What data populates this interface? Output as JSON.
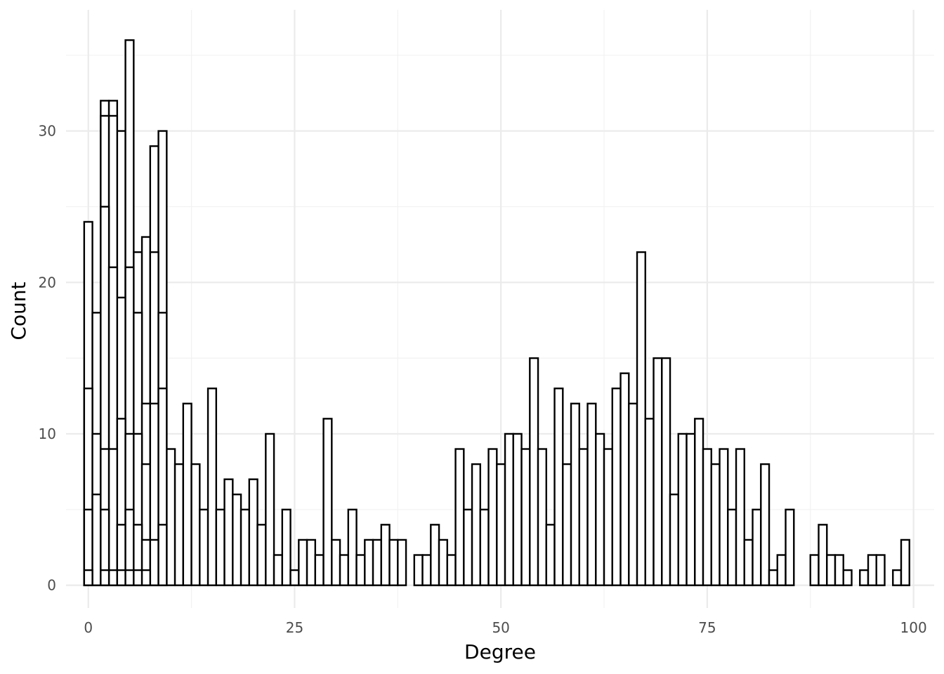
{
  "chart_data": {
    "type": "bar",
    "title": "",
    "xlabel": "Degree",
    "ylabel": "Count",
    "xlim": [
      -2.7,
      102.5
    ],
    "ylim": [
      -1.5,
      38
    ],
    "x_ticks": [
      0,
      25,
      50,
      75,
      100
    ],
    "y_ticks": [
      0,
      10,
      20,
      30
    ],
    "grid": true,
    "legend": "none",
    "bin_width": 1,
    "series": [
      {
        "x": [
          0,
          1,
          2,
          3,
          4,
          5,
          6,
          7,
          8,
          9,
          10,
          11,
          12,
          13,
          14,
          15,
          16,
          17,
          18,
          19,
          20,
          21,
          22,
          23,
          24,
          25,
          26,
          27,
          28,
          29,
          30,
          31,
          32,
          33,
          34,
          35,
          36,
          37,
          38,
          40,
          41,
          42,
          43,
          44,
          45,
          46,
          47,
          48,
          49,
          50,
          51,
          52,
          53,
          54,
          55,
          56,
          57,
          58,
          59,
          60,
          61,
          62,
          63,
          64,
          65,
          66,
          67,
          68,
          69,
          70,
          71,
          72,
          73,
          74,
          75,
          76,
          77,
          78,
          79,
          80,
          81,
          82,
          83,
          84,
          85,
          88,
          89,
          90,
          91,
          92,
          94,
          95,
          96,
          98,
          99
        ],
        "values": [
          24,
          18,
          32,
          32,
          30,
          36,
          22,
          23,
          29,
          30,
          9,
          8,
          12,
          8,
          5,
          13,
          5,
          7,
          6,
          5,
          7,
          4,
          10,
          2,
          5,
          1,
          3,
          3,
          2,
          11,
          3,
          2,
          5,
          2,
          3,
          3,
          4,
          3,
          3,
          2,
          2,
          4,
          3,
          2,
          9,
          5,
          8,
          5,
          9,
          8,
          10,
          10,
          9,
          15,
          9,
          4,
          13,
          8,
          12,
          9,
          12,
          10,
          9,
          13,
          14,
          12,
          22,
          11,
          15,
          15,
          6,
          10,
          10,
          11,
          9,
          8,
          9,
          5,
          9,
          3,
          5,
          8,
          1,
          2,
          5,
          2,
          4,
          2,
          2,
          1,
          1,
          2,
          2,
          1,
          3
        ]
      },
      {
        "x": [
          0,
          1,
          2,
          3,
          4,
          5,
          6,
          7,
          8,
          9
        ],
        "values": [
          13,
          10,
          31,
          31,
          19,
          21,
          18,
          12,
          22,
          18
        ]
      },
      {
        "x": [
          0,
          1,
          2,
          3,
          4,
          5,
          6,
          7,
          8,
          9
        ],
        "values": [
          5,
          6,
          25,
          21,
          11,
          10,
          10,
          8,
          12,
          13
        ]
      },
      {
        "x": [
          0,
          2,
          3,
          4,
          5,
          6,
          7,
          8,
          9
        ],
        "values": [
          1,
          9,
          9,
          4,
          5,
          4,
          3,
          3,
          4
        ]
      },
      {
        "x": [
          2,
          3,
          4,
          5,
          6,
          7
        ],
        "values": [
          5,
          1,
          1,
          1,
          1,
          1
        ]
      },
      {
        "x": [
          2
        ],
        "values": [
          1
        ]
      }
    ]
  }
}
